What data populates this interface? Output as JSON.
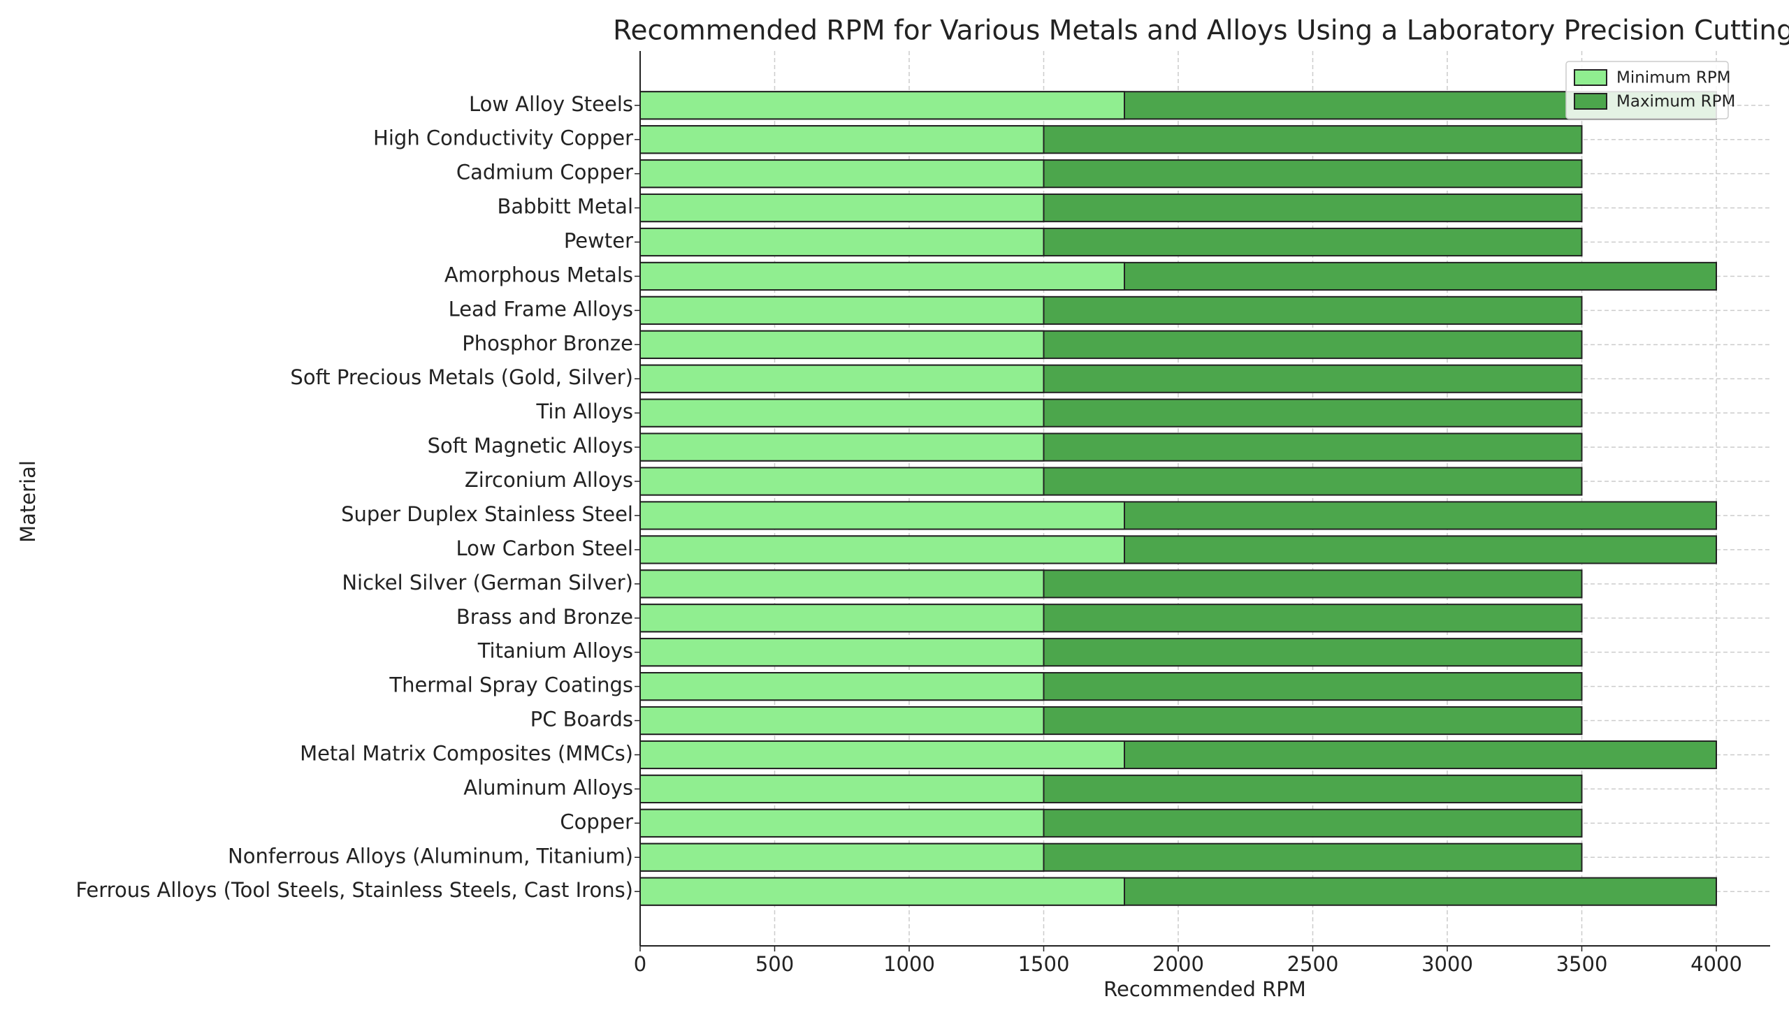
{
  "chart_data": {
    "type": "barh",
    "title": "Recommended RPM for Various Metals and Alloys Using a Laboratory Precision Cutting",
    "x_label": "Recommended RPM",
    "y_label": "Material",
    "categories": [
      "Ferrous Alloys (Tool Steels, Stainless Steels, Cast Irons)",
      "Nonferrous Alloys (Aluminum, Titanium)",
      "Copper",
      "Aluminum Alloys",
      "Metal Matrix Composites (MMCs)",
      "PC Boards",
      "Thermal Spray Coatings",
      "Titanium Alloys",
      "Brass and Bronze",
      "Nickel Silver (German Silver)",
      "Low Carbon Steel",
      "Super Duplex Stainless Steel",
      "Zirconium Alloys",
      "Soft Magnetic Alloys",
      "Tin Alloys",
      "Soft Precious Metals (Gold, Silver)",
      "Phosphor Bronze",
      "Lead Frame Alloys",
      "Amorphous Metals",
      "Pewter",
      "Babbitt Metal",
      "Cadmium Copper",
      "High Conductivity Copper",
      "Low Alloy Steels"
    ],
    "series": [
      {
        "name": "Maximum RPM",
        "color": "#4ca64c",
        "values": [
          4000,
          3500,
          3500,
          3500,
          4000,
          3500,
          3500,
          3500,
          3500,
          3500,
          4000,
          4000,
          3500,
          3500,
          3500,
          3500,
          3500,
          3500,
          4000,
          3500,
          3500,
          3500,
          3500,
          4000
        ]
      },
      {
        "name": "Minimum RPM",
        "color": "#90ee90",
        "values": [
          1800,
          1500,
          1500,
          1500,
          1800,
          1500,
          1500,
          1500,
          1500,
          1500,
          1800,
          1800,
          1500,
          1500,
          1500,
          1500,
          1500,
          1500,
          1800,
          1500,
          1500,
          1500,
          1500,
          1800
        ]
      }
    ],
    "legend_order": [
      1,
      0
    ],
    "xlim": [
      0,
      4200
    ],
    "xticks": [
      0,
      500,
      1000,
      1500,
      2000,
      2500,
      3000,
      3500,
      4000
    ],
    "grid": true,
    "legend": "upper right"
  }
}
